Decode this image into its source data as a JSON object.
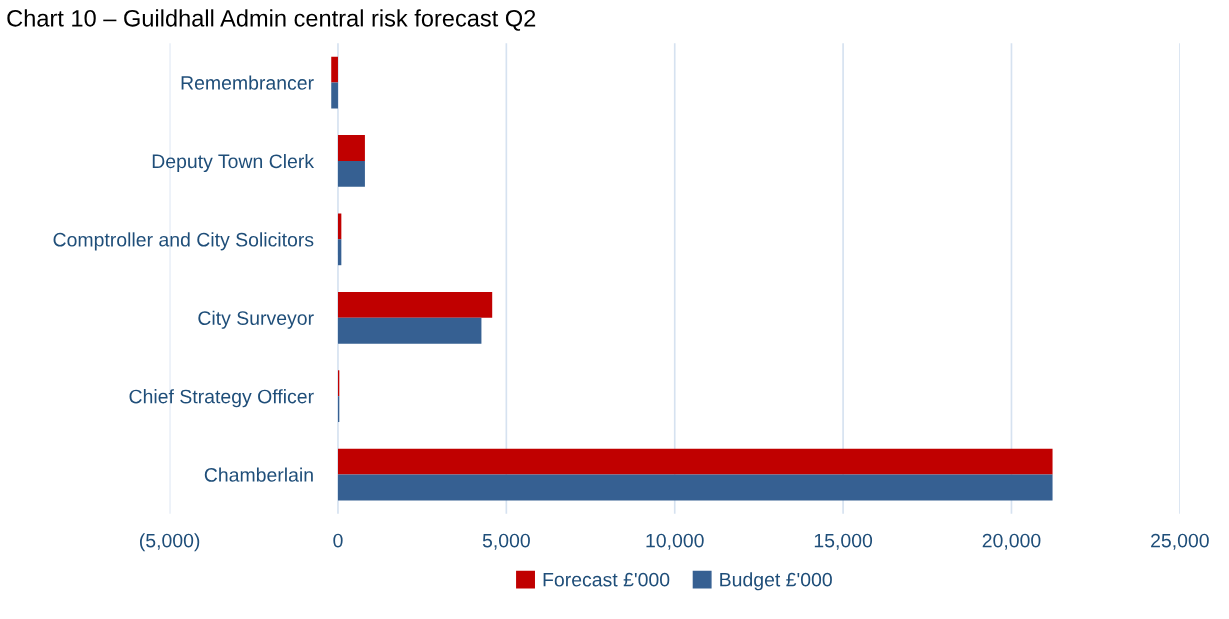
{
  "chart_data": {
    "type": "bar",
    "orientation": "horizontal",
    "title": "Chart 10 – Guildhall Admin central risk forecast Q2",
    "categories": [
      "Remembrancer",
      "Deputy Town Clerk",
      "Comptroller and City Solicitors",
      "City Surveyor",
      "Chief Strategy Officer",
      "Chamberlain"
    ],
    "series": [
      {
        "name": "Forecast £'000",
        "color": "#c00000",
        "values": [
          -200,
          800,
          100,
          4580,
          40,
          21220
        ]
      },
      {
        "name": "Budget £'000",
        "color": "#366092",
        "values": [
          -200,
          800,
          100,
          4260,
          40,
          21220
        ]
      }
    ],
    "xlim": [
      -5000,
      25000
    ],
    "xticks": [
      {
        "value": -5000,
        "label": "(5,000)"
      },
      0,
      {
        "value": 5000,
        "label": "5,000"
      },
      {
        "value": 10000,
        "label": "10,000"
      },
      {
        "value": 15000,
        "label": "15,000"
      },
      {
        "value": 20000,
        "label": "20,000"
      },
      {
        "value": 25000,
        "label": "25,000"
      }
    ],
    "grid": "x",
    "legend": "bottom"
  }
}
